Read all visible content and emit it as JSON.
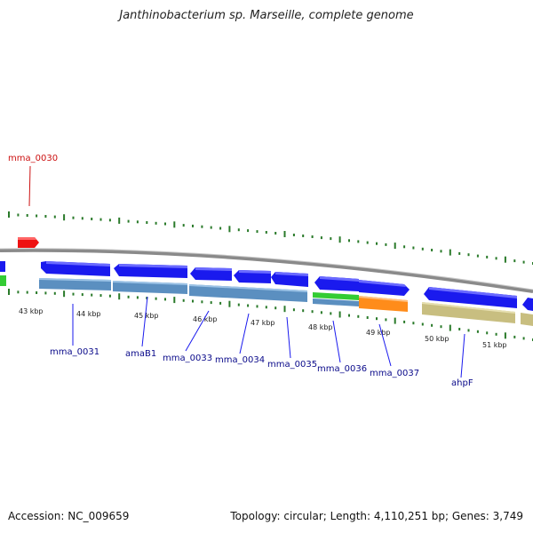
{
  "header": {
    "title": "Janthinobacterium sp. Marseille, complete genome"
  },
  "footer": {
    "accession": "Accession: NC_009659",
    "summary": "Topology: circular; Length: 4,110,251 bp; Genes: 3,749"
  },
  "colors": {
    "backbone": "#8a8a8a",
    "tick": "#2a7a2a",
    "forward_gene": "#1a1aee",
    "reverse_bar_blue": "#5b8fc0",
    "reverse_bar_tan": "#c8be80",
    "bar_orange": "#ff8c1a",
    "bar_green": "#33cc33",
    "highlight_gene": "#ee1111"
  },
  "scale": {
    "labels": [
      "43 kbp",
      "44 kbp",
      "45 kbp",
      "46 kbp",
      "47 kbp",
      "48 kbp",
      "49 kbp",
      "50 kbp",
      "51 kbp"
    ]
  },
  "genes": [
    {
      "name": "mma_0030"
    },
    {
      "name": "mma_0031"
    },
    {
      "name": "amaB1"
    },
    {
      "name": "mma_0033"
    },
    {
      "name": "mma_0034"
    },
    {
      "name": "mma_0035"
    },
    {
      "name": "mma_0036"
    },
    {
      "name": "mma_0037"
    },
    {
      "name": "ahpF"
    }
  ]
}
